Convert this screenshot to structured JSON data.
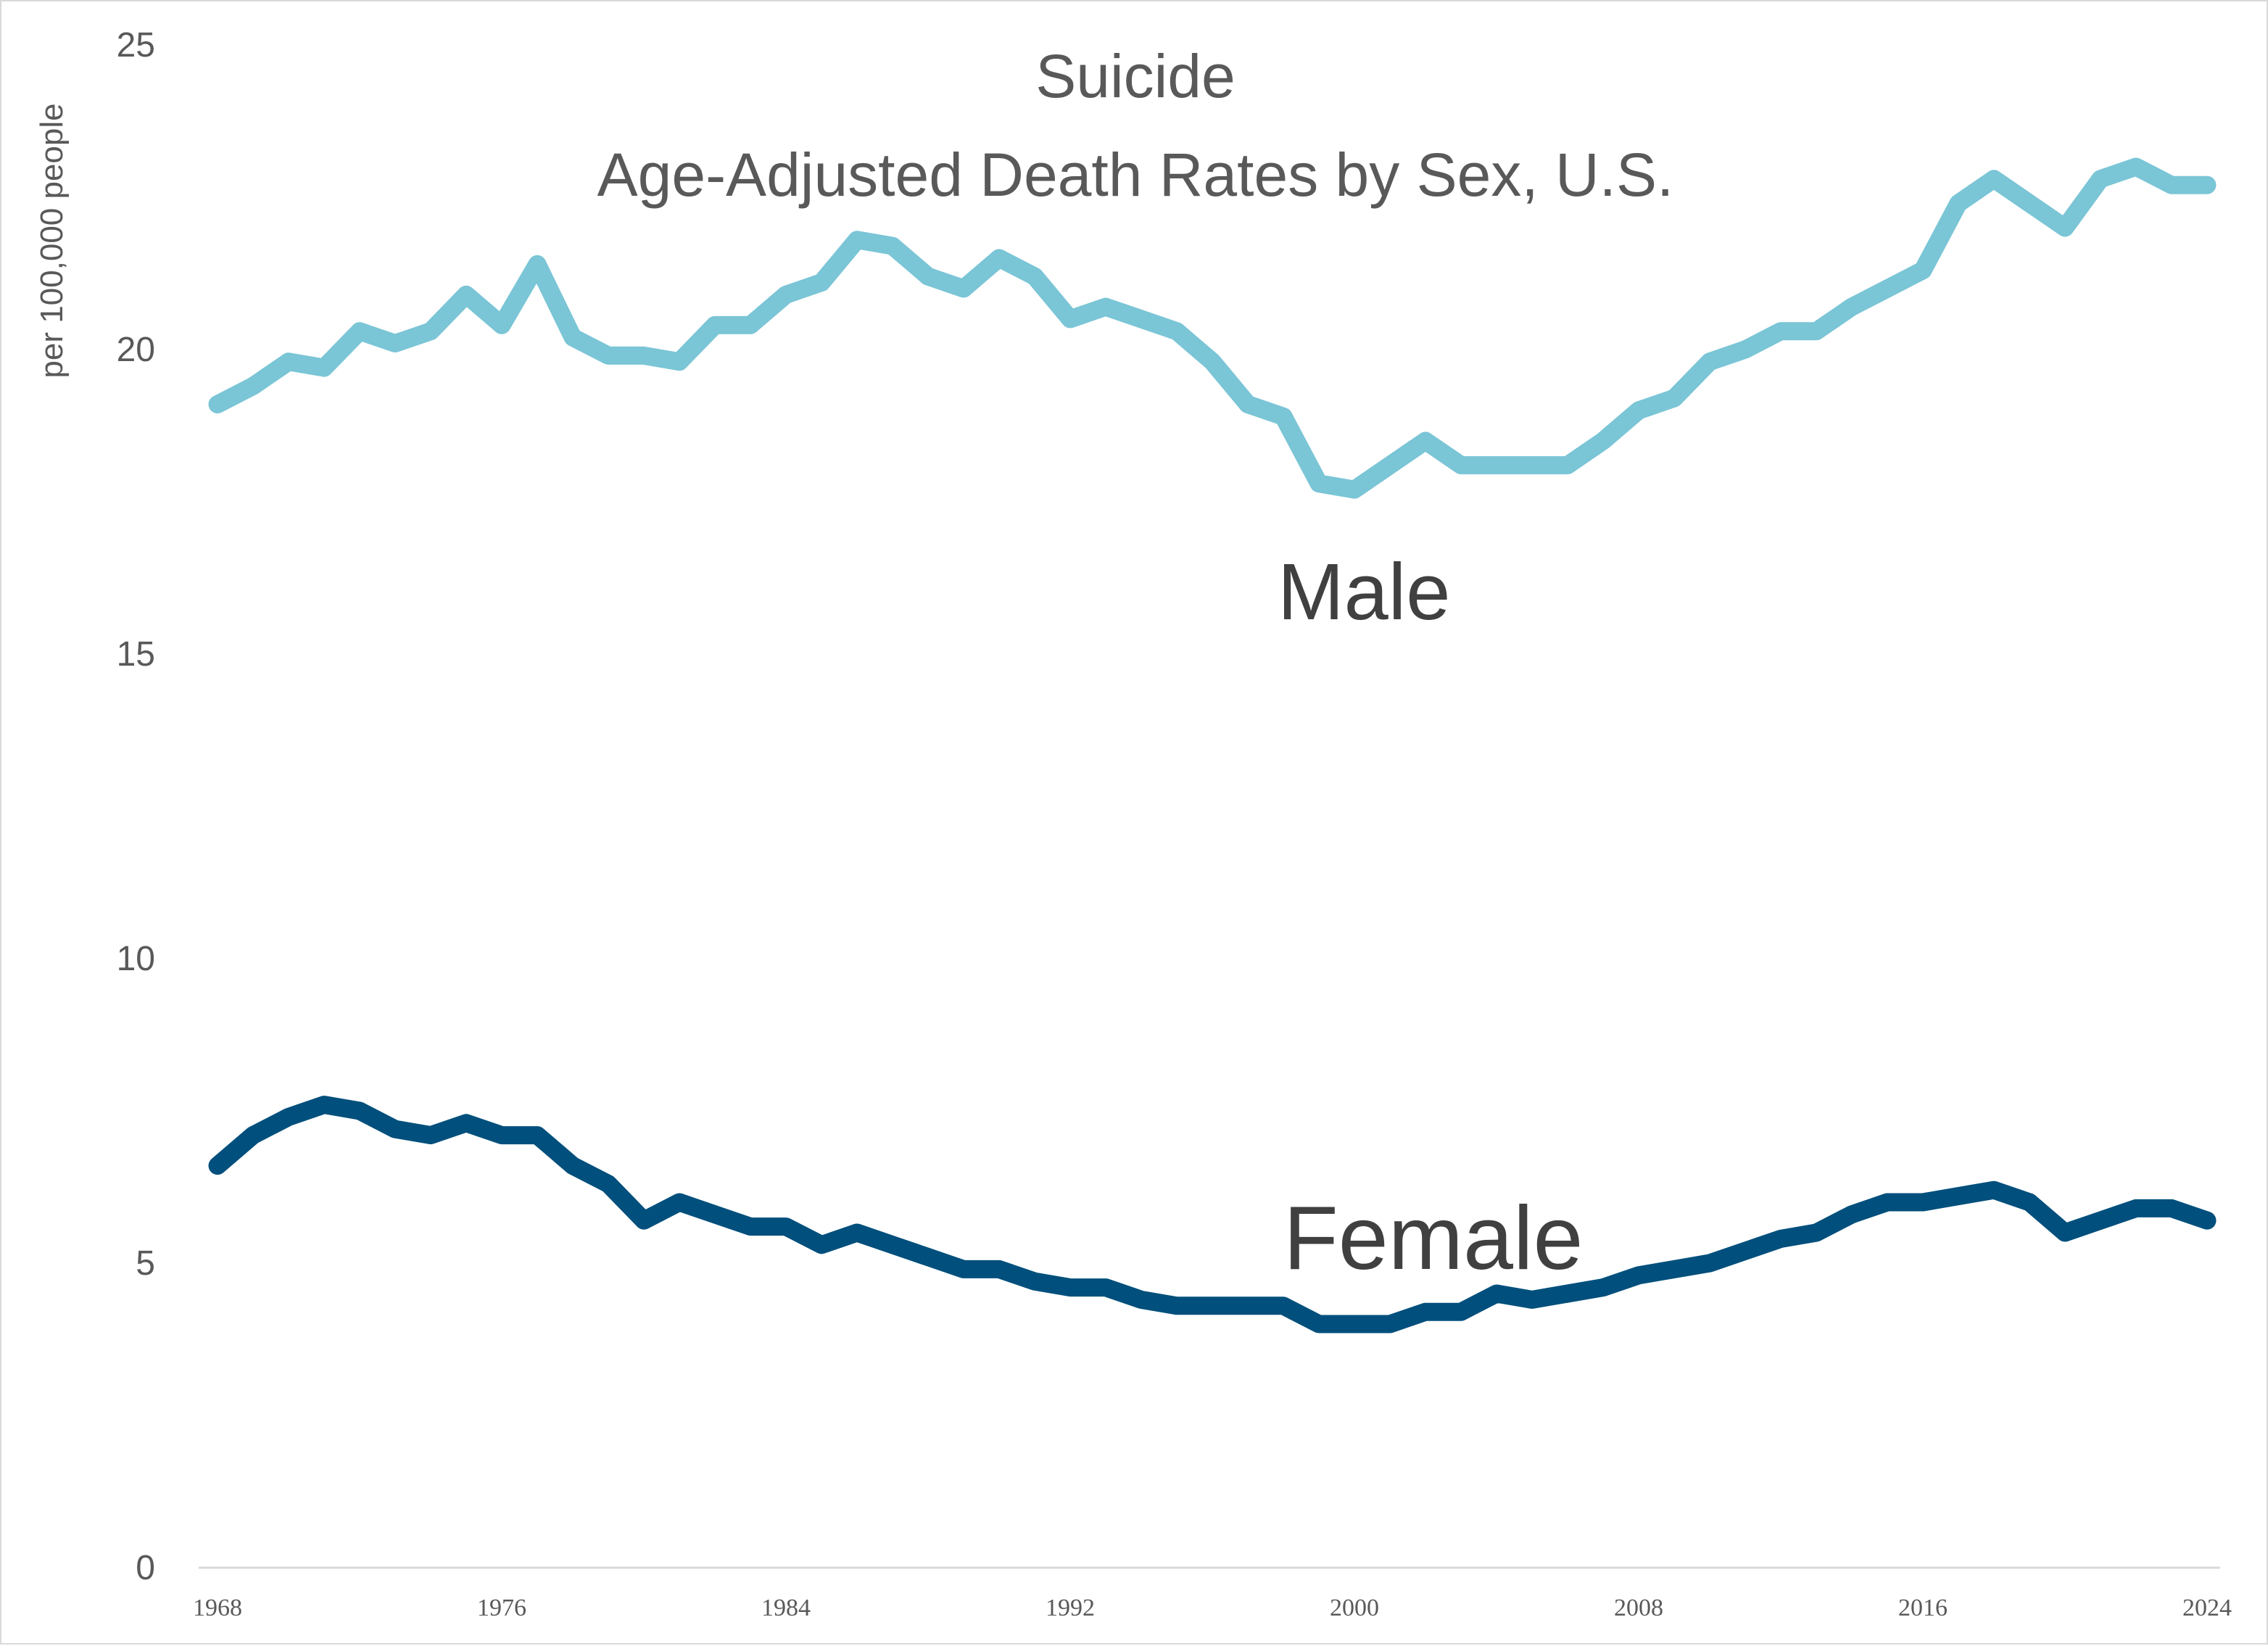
{
  "chart_data": {
    "type": "line",
    "title": "Suicide",
    "subtitle": "Age-Adjusted Death Rates by Sex, U.S.",
    "xlabel": "",
    "ylabel": "per 100,000 people",
    "ylim": [
      0,
      25
    ],
    "yticks": [
      "0",
      "5",
      "10",
      "15",
      "20",
      "25"
    ],
    "xticks": [
      "1968",
      "1976",
      "1984",
      "1992",
      "2000",
      "2008",
      "2016",
      "2024"
    ],
    "grid": false,
    "legend": "inline labels",
    "x": [
      1968,
      1969,
      1970,
      1971,
      1972,
      1973,
      1974,
      1975,
      1976,
      1977,
      1978,
      1979,
      1980,
      1981,
      1982,
      1983,
      1984,
      1985,
      1986,
      1987,
      1988,
      1989,
      1990,
      1991,
      1992,
      1993,
      1994,
      1995,
      1996,
      1997,
      1998,
      1999,
      2000,
      2001,
      2002,
      2003,
      2004,
      2005,
      2006,
      2007,
      2008,
      2009,
      2010,
      2011,
      2012,
      2013,
      2014,
      2015,
      2016,
      2017,
      2018,
      2019,
      2020,
      2021,
      2022,
      2023,
      2024
    ],
    "series": [
      {
        "name": "Male",
        "color": "#7ac5d6",
        "values": [
          19.1,
          19.4,
          19.8,
          19.7,
          20.3,
          20.1,
          20.3,
          20.9,
          20.4,
          21.4,
          20.2,
          19.9,
          19.9,
          19.8,
          20.4,
          20.4,
          20.9,
          21.1,
          21.8,
          21.7,
          21.2,
          21.0,
          21.5,
          21.2,
          20.5,
          20.7,
          20.5,
          20.3,
          19.8,
          19.1,
          18.9,
          17.8,
          17.7,
          18.1,
          18.5,
          18.1,
          18.1,
          18.1,
          18.1,
          18.5,
          19.0,
          19.2,
          19.8,
          20.0,
          20.3,
          20.3,
          20.7,
          21.0,
          21.3,
          22.4,
          22.8,
          22.4,
          22.0,
          22.8,
          23.0,
          22.7,
          22.7
        ]
      },
      {
        "name": "Female",
        "color": "#004f7c",
        "values": [
          6.6,
          7.1,
          7.4,
          7.6,
          7.5,
          7.2,
          7.1,
          7.3,
          7.1,
          7.1,
          6.6,
          6.3,
          5.7,
          6.0,
          5.8,
          5.6,
          5.6,
          5.3,
          5.5,
          5.3,
          5.1,
          4.9,
          4.9,
          4.7,
          4.6,
          4.6,
          4.4,
          4.3,
          4.3,
          4.3,
          4.3,
          4.0,
          4.0,
          4.0,
          4.2,
          4.2,
          4.5,
          4.4,
          4.5,
          4.6,
          4.8,
          4.9,
          5.0,
          5.2,
          5.4,
          5.5,
          5.8,
          6.0,
          6.0,
          6.1,
          6.2,
          6.0,
          5.5,
          5.7,
          5.9,
          5.9,
          5.7
        ]
      }
    ]
  }
}
